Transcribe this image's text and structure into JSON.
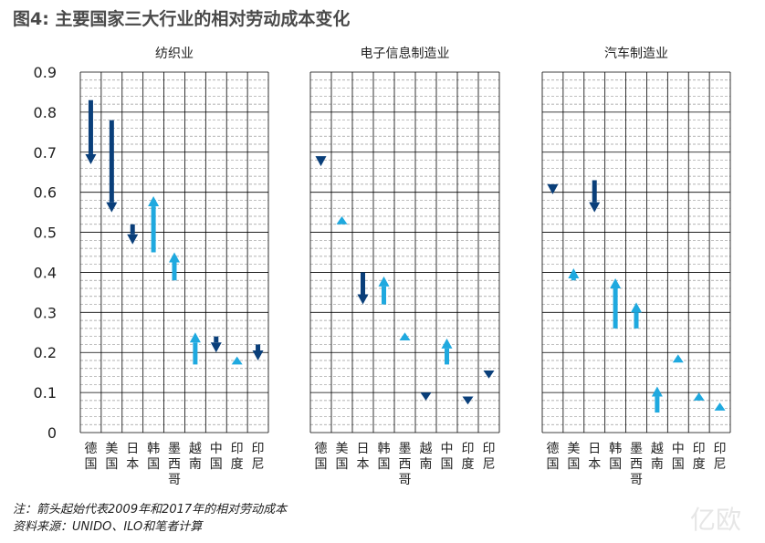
{
  "title": "图4: 主要国家三大行业的相对劳动成本变化",
  "notes": {
    "line1": "注：箭头起始代表2009年和2017年的相对劳动成本",
    "line2": "资料来源：UNIDO、ILO和笔者计算"
  },
  "watermark": "亿欧",
  "colors": {
    "down": "#0a3f7a",
    "up": "#1fa9df",
    "grid": "#000000",
    "minor": "#9a9a9a"
  },
  "chart_data": {
    "type": "arrow",
    "y_ticks": [
      "0",
      "0.1",
      "0.2",
      "0.3",
      "0.4",
      "0.5",
      "0.6",
      "0.7",
      "0.8",
      "0.9"
    ],
    "ylim": [
      0,
      0.9
    ],
    "grid": true,
    "categories": [
      "德国",
      "美国",
      "日本",
      "韩国",
      "墨西哥",
      "越南",
      "中国",
      "印度",
      "印尼"
    ],
    "panels": [
      {
        "title": "纺织业",
        "series": [
          {
            "country": "德国",
            "start": 0.83,
            "end": 0.67
          },
          {
            "country": "美国",
            "start": 0.78,
            "end": 0.55
          },
          {
            "country": "日本",
            "start": 0.52,
            "end": 0.47
          },
          {
            "country": "韩国",
            "start": 0.45,
            "end": 0.59
          },
          {
            "country": "墨西哥",
            "start": 0.38,
            "end": 0.45
          },
          {
            "country": "越南",
            "start": 0.17,
            "end": 0.25
          },
          {
            "country": "中国",
            "start": 0.24,
            "end": 0.2
          },
          {
            "country": "印度",
            "start": 0.17,
            "end": 0.19
          },
          {
            "country": "印尼",
            "start": 0.22,
            "end": 0.18
          }
        ]
      },
      {
        "title": "电子信息制造业",
        "series": [
          {
            "country": "德国",
            "start": 0.69,
            "end": 0.665
          },
          {
            "country": "美国",
            "start": 0.52,
            "end": 0.54
          },
          {
            "country": "日本",
            "start": 0.4,
            "end": 0.32
          },
          {
            "country": "韩国",
            "start": 0.32,
            "end": 0.39
          },
          {
            "country": "墨西哥",
            "start": 0.23,
            "end": 0.25
          },
          {
            "country": "越南",
            "start": 0.1,
            "end": 0.08
          },
          {
            "country": "中国",
            "start": 0.17,
            "end": 0.235
          },
          {
            "country": "印度",
            "start": 0.09,
            "end": 0.07
          },
          {
            "country": "印尼",
            "start": 0.155,
            "end": 0.135
          }
        ]
      },
      {
        "title": "汽车制造业",
        "series": [
          {
            "country": "德国",
            "start": 0.62,
            "end": 0.595
          },
          {
            "country": "美国",
            "start": 0.38,
            "end": 0.41
          },
          {
            "country": "日本",
            "start": 0.63,
            "end": 0.55
          },
          {
            "country": "韩国",
            "start": 0.26,
            "end": 0.385
          },
          {
            "country": "墨西哥",
            "start": 0.26,
            "end": 0.325
          },
          {
            "country": "越南",
            "start": 0.05,
            "end": 0.115
          },
          {
            "country": "中国",
            "start": 0.175,
            "end": 0.195
          },
          {
            "country": "印度",
            "start": 0.08,
            "end": 0.1
          },
          {
            "country": "印尼",
            "start": 0.055,
            "end": 0.075
          }
        ]
      }
    ]
  }
}
